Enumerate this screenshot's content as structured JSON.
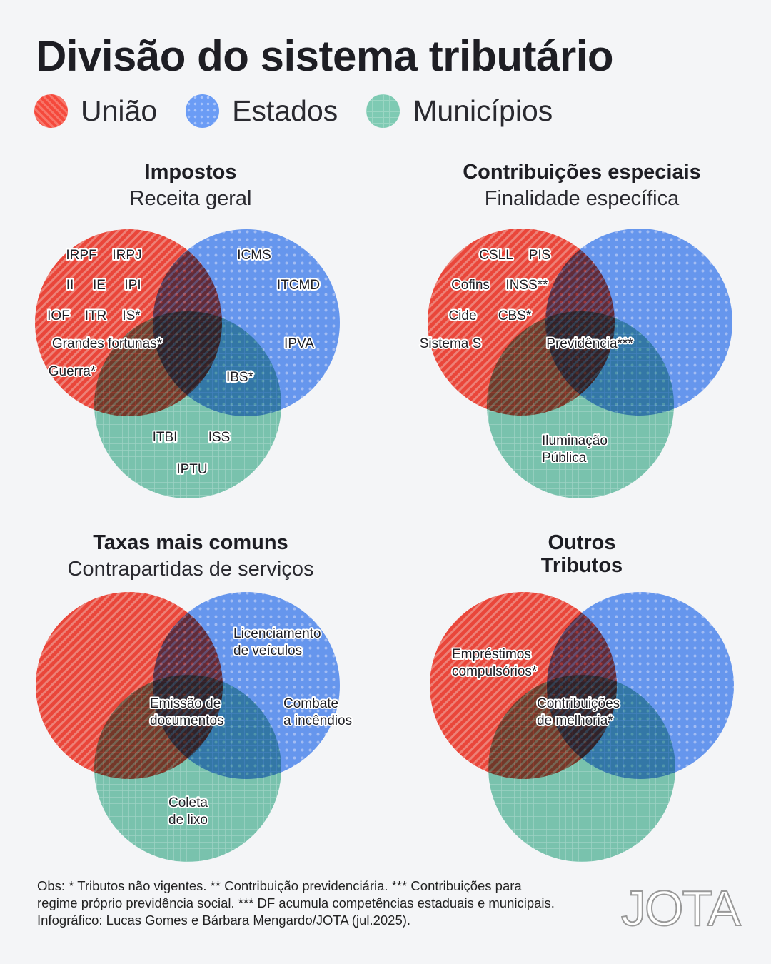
{
  "title": "Divisão do sistema tributário",
  "legend": [
    {
      "label": "União",
      "color": "#f5493c"
    },
    {
      "label": "Estados",
      "color": "#6b9cf5"
    },
    {
      "label": "Municípios",
      "color": "#7ecab3"
    }
  ],
  "panels": [
    {
      "title": "Impostos",
      "subtitle": "Receita geral",
      "labels": [
        "IRPF",
        "IRPJ",
        "II",
        "IE",
        "IPI",
        "IOF",
        "ITR",
        "IS*",
        "Grandes fortunas*",
        "Guerra*",
        "ICMS",
        "ITCMD",
        "IPVA",
        "IBS*",
        "ITBI",
        "ISS",
        "IPTU"
      ]
    },
    {
      "title": "Contribuições especiais",
      "subtitle": "Finalidade específica",
      "labels": [
        "CSLL",
        "PIS",
        "Cofins",
        "INSS**",
        "Cide",
        "CBS*",
        "Sistema S",
        "Previdência***",
        "Iluminação",
        "Pública"
      ]
    },
    {
      "title": "Taxas mais comuns",
      "subtitle": "Contrapartidas de serviços",
      "labels": [
        "Licenciamento",
        "de veículos",
        "Emissão de",
        "documentos",
        "Combate",
        "a incêndios",
        "Coleta",
        "de lixo"
      ]
    },
    {
      "title": "Outros",
      "subtitle": "Tributos",
      "labels": [
        "Empréstimos",
        "compulsórios*",
        "Contribuições",
        "de melhoria*"
      ]
    }
  ],
  "footnote": [
    "Obs: * Tributos não vigentes. ** Contribuição previdenciária. *** Contribuições para",
    "regime próprio previdência social. *** DF acumula competências estaduais e municipais.",
    "Infográfico: Lucas Gomes e Bárbara Mengardo/JOTA (jul.2025)."
  ],
  "logo": "JOTA"
}
